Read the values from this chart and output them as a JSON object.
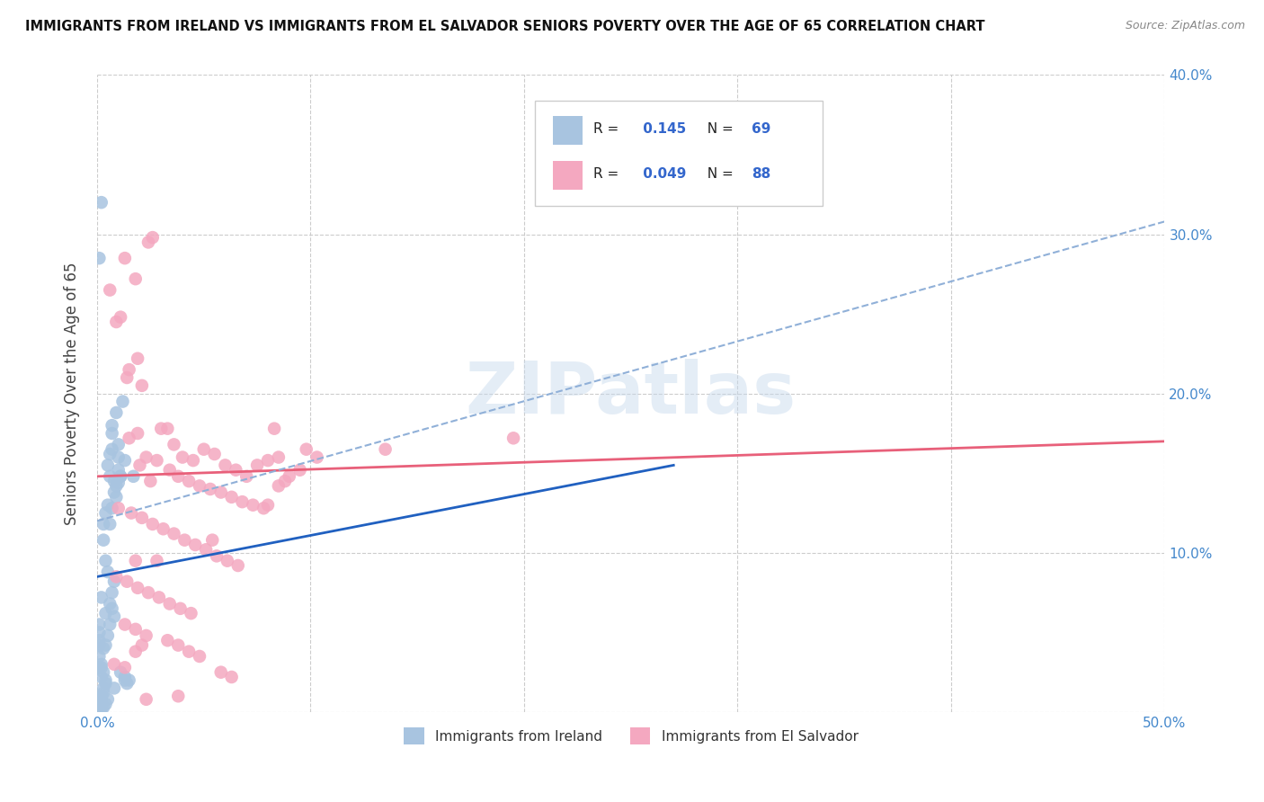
{
  "title": "IMMIGRANTS FROM IRELAND VS IMMIGRANTS FROM EL SALVADOR SENIORS POVERTY OVER THE AGE OF 65 CORRELATION CHART",
  "source": "Source: ZipAtlas.com",
  "ylabel": "Seniors Poverty Over the Age of 65",
  "xlabel": "",
  "xlim": [
    0,
    0.5
  ],
  "ylim": [
    0,
    0.4
  ],
  "xticks": [
    0.0,
    0.1,
    0.2,
    0.3,
    0.4,
    0.5
  ],
  "yticks": [
    0.0,
    0.1,
    0.2,
    0.3,
    0.4
  ],
  "xticklabels": [
    "0.0%",
    "",
    "",
    "",
    "",
    "50.0%"
  ],
  "yticklabels": [
    "",
    "10.0%",
    "20.0%",
    "30.0%",
    "40.0%"
  ],
  "ireland_R": 0.145,
  "ireland_N": 69,
  "salvador_R": 0.049,
  "salvador_N": 88,
  "ireland_color": "#a8c4e0",
  "salvador_color": "#f4a8c0",
  "ireland_line_color": "#2060c0",
  "salvador_line_color": "#e8607a",
  "dashed_line_color": "#90b0d8",
  "watermark": "ZIPatlas",
  "background_color": "#ffffff",
  "grid_color": "#cccccc",
  "ireland_scatter": [
    [
      0.001,
      0.055
    ],
    [
      0.002,
      0.072
    ],
    [
      0.001,
      0.045
    ],
    [
      0.003,
      0.04
    ],
    [
      0.004,
      0.062
    ],
    [
      0.002,
      0.03
    ],
    [
      0.003,
      0.025
    ],
    [
      0.001,
      0.035
    ],
    [
      0.004,
      0.018
    ],
    [
      0.002,
      0.01
    ],
    [
      0.003,
      0.015
    ],
    [
      0.003,
      0.012
    ],
    [
      0.002,
      0.008
    ],
    [
      0.001,
      0.05
    ],
    [
      0.001,
      0.042
    ],
    [
      0.001,
      0.028
    ],
    [
      0.002,
      0.022
    ],
    [
      0.004,
      0.02
    ],
    [
      0.005,
      0.155
    ],
    [
      0.006,
      0.118
    ],
    [
      0.007,
      0.175
    ],
    [
      0.007,
      0.18
    ],
    [
      0.009,
      0.135
    ],
    [
      0.007,
      0.165
    ],
    [
      0.008,
      0.145
    ],
    [
      0.01,
      0.16
    ],
    [
      0.011,
      0.148
    ],
    [
      0.013,
      0.158
    ],
    [
      0.009,
      0.142
    ],
    [
      0.01,
      0.152
    ],
    [
      0.006,
      0.162
    ],
    [
      0.006,
      0.148
    ],
    [
      0.01,
      0.144
    ],
    [
      0.011,
      0.148
    ],
    [
      0.005,
      0.13
    ],
    [
      0.004,
      0.125
    ],
    [
      0.003,
      0.118
    ],
    [
      0.003,
      0.108
    ],
    [
      0.004,
      0.095
    ],
    [
      0.005,
      0.088
    ],
    [
      0.008,
      0.082
    ],
    [
      0.007,
      0.075
    ],
    [
      0.006,
      0.068
    ],
    [
      0.007,
      0.065
    ],
    [
      0.008,
      0.06
    ],
    [
      0.006,
      0.055
    ],
    [
      0.005,
      0.048
    ],
    [
      0.004,
      0.042
    ],
    [
      0.002,
      0.028
    ],
    [
      0.001,
      0.285
    ],
    [
      0.002,
      0.32
    ],
    [
      0.011,
      0.025
    ],
    [
      0.013,
      0.022
    ],
    [
      0.015,
      0.02
    ],
    [
      0.014,
      0.018
    ],
    [
      0.013,
      0.02
    ],
    [
      0.008,
      0.015
    ],
    [
      0.005,
      0.008
    ],
    [
      0.004,
      0.005
    ],
    [
      0.003,
      0.003
    ],
    [
      0.002,
      0.002
    ],
    [
      0.001,
      0.004
    ],
    [
      0.001,
      0.007
    ],
    [
      0.002,
      0.01
    ],
    [
      0.01,
      0.168
    ],
    [
      0.009,
      0.188
    ],
    [
      0.012,
      0.195
    ],
    [
      0.007,
      0.128
    ],
    [
      0.008,
      0.138
    ],
    [
      0.017,
      0.148
    ]
  ],
  "salvador_scatter": [
    [
      0.006,
      0.265
    ],
    [
      0.018,
      0.272
    ],
    [
      0.013,
      0.285
    ],
    [
      0.009,
      0.245
    ],
    [
      0.011,
      0.248
    ],
    [
      0.014,
      0.21
    ],
    [
      0.015,
      0.215
    ],
    [
      0.021,
      0.205
    ],
    [
      0.019,
      0.222
    ],
    [
      0.024,
      0.295
    ],
    [
      0.026,
      0.298
    ],
    [
      0.015,
      0.172
    ],
    [
      0.019,
      0.175
    ],
    [
      0.033,
      0.178
    ],
    [
      0.036,
      0.168
    ],
    [
      0.04,
      0.16
    ],
    [
      0.045,
      0.158
    ],
    [
      0.05,
      0.165
    ],
    [
      0.055,
      0.162
    ],
    [
      0.06,
      0.155
    ],
    [
      0.065,
      0.152
    ],
    [
      0.07,
      0.148
    ],
    [
      0.075,
      0.155
    ],
    [
      0.08,
      0.158
    ],
    [
      0.085,
      0.16
    ],
    [
      0.023,
      0.16
    ],
    [
      0.028,
      0.158
    ],
    [
      0.034,
      0.152
    ],
    [
      0.038,
      0.148
    ],
    [
      0.043,
      0.145
    ],
    [
      0.048,
      0.142
    ],
    [
      0.053,
      0.14
    ],
    [
      0.058,
      0.138
    ],
    [
      0.063,
      0.135
    ],
    [
      0.068,
      0.132
    ],
    [
      0.073,
      0.13
    ],
    [
      0.078,
      0.128
    ],
    [
      0.08,
      0.13
    ],
    [
      0.01,
      0.128
    ],
    [
      0.016,
      0.125
    ],
    [
      0.021,
      0.122
    ],
    [
      0.026,
      0.118
    ],
    [
      0.031,
      0.115
    ],
    [
      0.036,
      0.112
    ],
    [
      0.041,
      0.108
    ],
    [
      0.046,
      0.105
    ],
    [
      0.051,
      0.102
    ],
    [
      0.056,
      0.098
    ],
    [
      0.061,
      0.095
    ],
    [
      0.066,
      0.092
    ],
    [
      0.009,
      0.085
    ],
    [
      0.014,
      0.082
    ],
    [
      0.019,
      0.078
    ],
    [
      0.024,
      0.075
    ],
    [
      0.029,
      0.072
    ],
    [
      0.034,
      0.068
    ],
    [
      0.039,
      0.065
    ],
    [
      0.044,
      0.062
    ],
    [
      0.025,
      0.145
    ],
    [
      0.03,
      0.178
    ],
    [
      0.02,
      0.155
    ],
    [
      0.018,
      0.095
    ],
    [
      0.028,
      0.095
    ],
    [
      0.013,
      0.055
    ],
    [
      0.023,
      0.048
    ],
    [
      0.018,
      0.052
    ],
    [
      0.033,
      0.045
    ],
    [
      0.038,
      0.042
    ],
    [
      0.043,
      0.038
    ],
    [
      0.048,
      0.035
    ],
    [
      0.008,
      0.03
    ],
    [
      0.013,
      0.028
    ],
    [
      0.058,
      0.025
    ],
    [
      0.063,
      0.022
    ],
    [
      0.023,
      0.008
    ],
    [
      0.038,
      0.01
    ],
    [
      0.018,
      0.038
    ],
    [
      0.021,
      0.042
    ],
    [
      0.054,
      0.108
    ],
    [
      0.083,
      0.178
    ],
    [
      0.195,
      0.172
    ],
    [
      0.135,
      0.165
    ],
    [
      0.098,
      0.165
    ],
    [
      0.103,
      0.16
    ],
    [
      0.095,
      0.152
    ],
    [
      0.09,
      0.148
    ],
    [
      0.088,
      0.145
    ],
    [
      0.085,
      0.142
    ]
  ],
  "ireland_trendline": [
    [
      0.0,
      0.085
    ],
    [
      0.27,
      0.155
    ]
  ],
  "salvador_trendline": [
    [
      0.0,
      0.148
    ],
    [
      0.5,
      0.17
    ]
  ],
  "dashed_trendline": [
    [
      0.0,
      0.12
    ],
    [
      0.5,
      0.308
    ]
  ]
}
